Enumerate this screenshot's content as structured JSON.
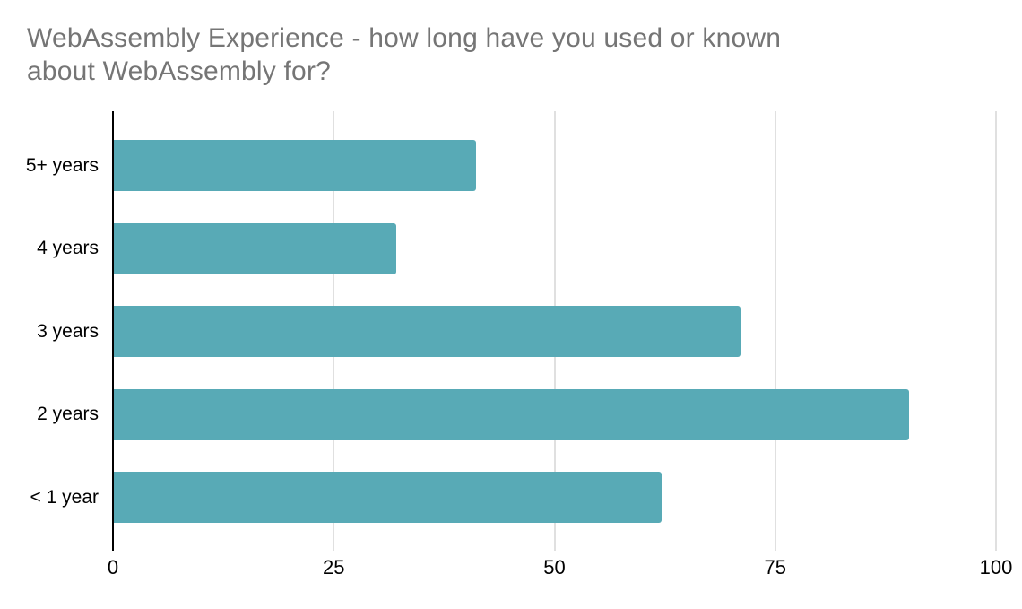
{
  "title": {
    "line1": "WebAssembly Experience - how long have you used or known",
    "line2": "about WebAssembly for?"
  },
  "chart_data": {
    "type": "bar",
    "orientation": "horizontal",
    "title": "WebAssembly Experience - how long have you used or known about WebAssembly for?",
    "categories": [
      "5+ years",
      "4 years",
      "3 years",
      "2 years",
      "< 1 year"
    ],
    "values": [
      41,
      32,
      71,
      90,
      62
    ],
    "xlabel": "",
    "ylabel": "",
    "xlim": [
      0,
      100
    ],
    "x_ticks": [
      0,
      25,
      50,
      75,
      100
    ],
    "grid": true,
    "legend": "none",
    "colors": {
      "bar": "#58aab6",
      "title_text": "#757575",
      "axis_line": "#000000",
      "gridline": "#e0e0e0",
      "tick_label": "#000000",
      "category_label": "#000000",
      "background": "#ffffff"
    }
  }
}
